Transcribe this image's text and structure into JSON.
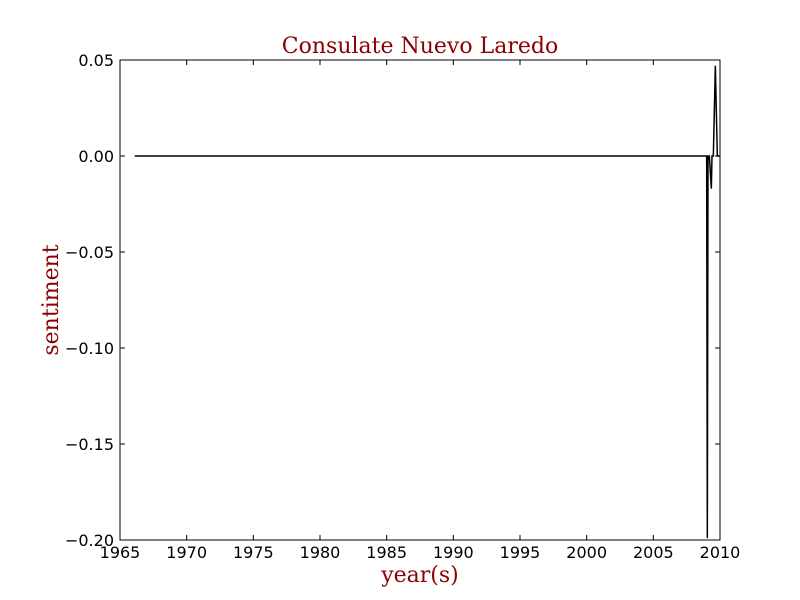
{
  "chart_data": {
    "type": "line",
    "title": "Consulate Nuevo Laredo",
    "xlabel": "year(s)",
    "ylabel": "sentiment",
    "xlim": [
      1965,
      2010
    ],
    "ylim": [
      -0.2,
      0.05
    ],
    "xticks": [
      1965,
      1970,
      1975,
      1980,
      1985,
      1990,
      1995,
      2000,
      2005,
      2010
    ],
    "yticks": [
      0.05,
      0.0,
      -0.05,
      -0.1,
      -0.15,
      -0.2
    ],
    "ytick_labels": [
      "0.05",
      "0.00",
      "−0.05",
      "−0.10",
      "−0.15",
      "−0.20"
    ],
    "grid": false,
    "series": [
      {
        "x": [
          1966.1,
          2009.0,
          2009.05,
          2009.1,
          2009.15,
          2009.2,
          2009.35,
          2009.4,
          2009.5,
          2009.65,
          2009.8,
          2010.0
        ],
        "y": [
          0.0,
          0.0,
          -0.199,
          0.0,
          0.0,
          0.0,
          -0.017,
          0.0,
          0.0,
          0.047,
          0.0,
          0.0
        ]
      }
    ],
    "colors": {
      "line": "#000000",
      "title": "#8b0000",
      "labels": "#8b0000"
    }
  }
}
